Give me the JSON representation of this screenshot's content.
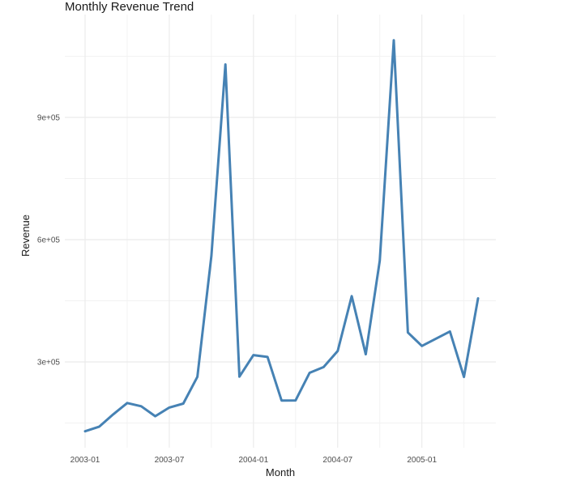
{
  "chart_data": {
    "type": "line",
    "title": "Monthly Revenue Trend",
    "xlabel": "Month",
    "ylabel": "Revenue",
    "x_tick_labels": [
      "2003-01",
      "2003-07",
      "2004-01",
      "2004-07",
      "2005-01"
    ],
    "y_tick_labels": [
      "3e+05",
      "6e+05",
      "9e+05"
    ],
    "ylim": [
      100000,
      1150000
    ],
    "x": [
      "2003-01",
      "2003-02",
      "2003-03",
      "2003-04",
      "2003-05",
      "2003-06",
      "2003-07",
      "2003-08",
      "2003-09",
      "2003-10",
      "2003-11",
      "2003-12",
      "2004-01",
      "2004-02",
      "2004-03",
      "2004-04",
      "2004-05",
      "2004-06",
      "2004-07",
      "2004-08",
      "2004-09",
      "2004-10",
      "2004-11",
      "2004-12",
      "2005-01",
      "2005-03",
      "2005-04",
      "2005-05"
    ],
    "series": [
      {
        "values": [
          129750,
          140840,
          171150,
          199000,
          191210,
          166760,
          187990,
          197750,
          263460,
          560000,
          1029840,
          263890,
          316650,
          312040,
          205140,
          205410,
          273180,
          287260,
          326820,
          461330,
          318650,
          548380,
          1089050,
          372160,
          339050,
          374660,
          262960,
          456000
        ],
        "color": "#4682B4"
      }
    ],
    "grid": true
  }
}
